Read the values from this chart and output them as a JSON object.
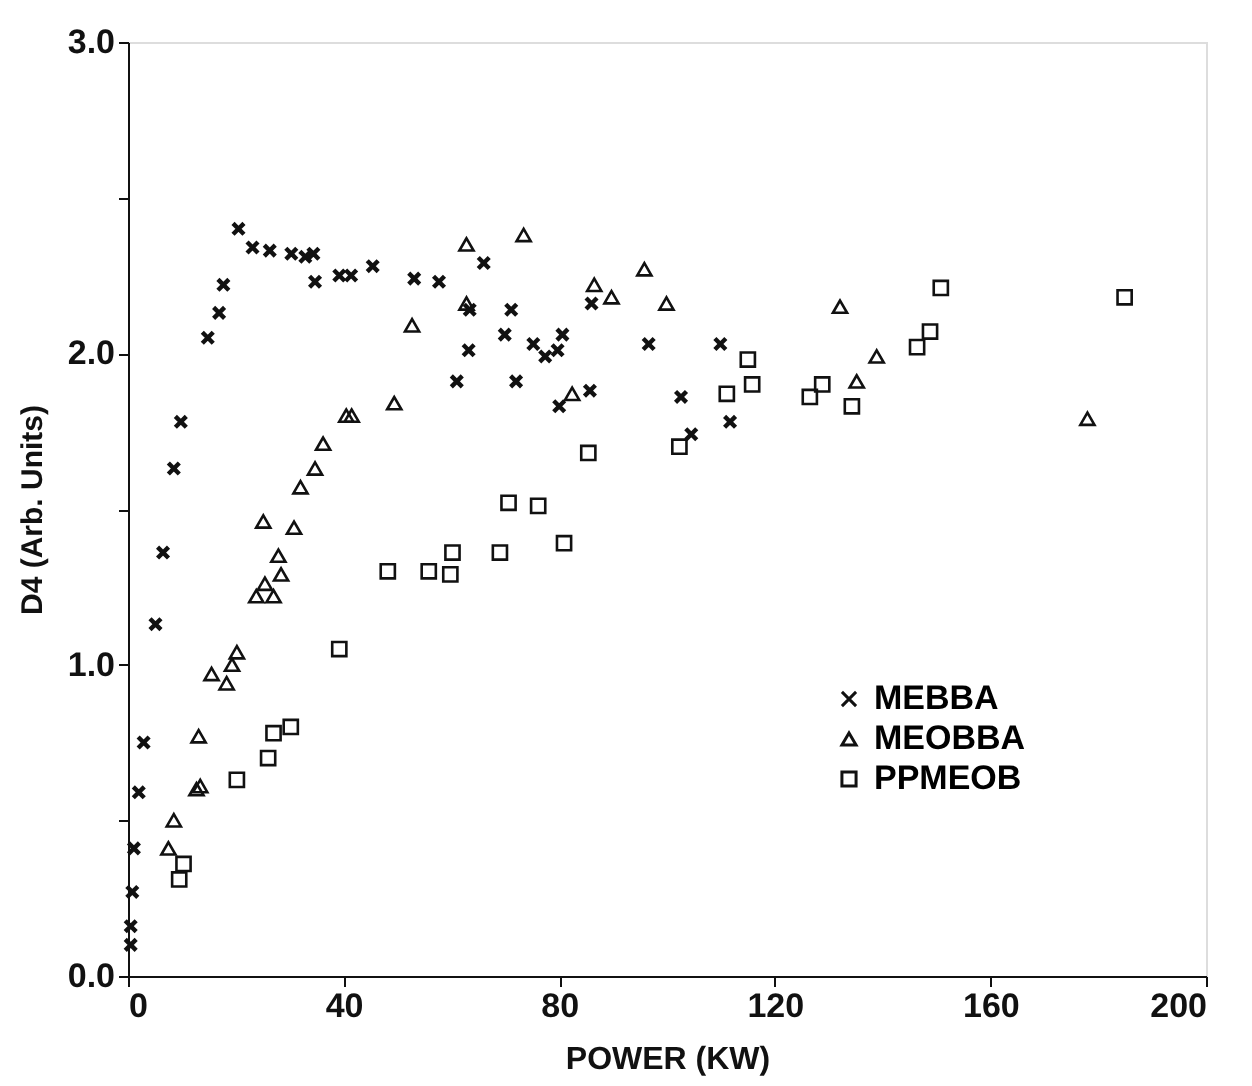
{
  "chart_data": {
    "type": "scatter",
    "xlabel": "POWER (KW)",
    "ylabel": "D4 (Arb. Units)",
    "xlim": [
      0,
      200
    ],
    "xticks": [
      0,
      40,
      80,
      120,
      160,
      200
    ],
    "ylim": [
      0,
      3.0
    ],
    "yticks": [
      {
        "value": 0,
        "label": "0.0"
      },
      {
        "value": 0.5,
        "label": null
      },
      {
        "value": 1,
        "label": "1.0"
      },
      {
        "value": 1.5,
        "label": null
      },
      {
        "value": 2,
        "label": "2.0"
      },
      {
        "value": 2.5,
        "label": null
      },
      {
        "value": 3,
        "label": "3.0"
      }
    ],
    "grid": false,
    "legend": "bottom right",
    "series": [
      {
        "name": "MEBBA",
        "color": "#111111",
        "marker": "cross",
        "x": [
          0.5,
          0.5,
          0.8,
          1.1,
          2,
          2.9,
          5.1,
          6.5,
          8.5,
          9.8,
          14.8,
          16.9,
          17.7,
          20.5,
          23.1,
          26.3,
          30.3,
          32.9,
          34.4,
          34.7,
          39.2,
          41.4,
          45.4,
          53.1,
          57.7,
          66,
          63.4,
          63.2,
          61,
          69.9,
          71.1,
          72,
          75.2,
          77.4,
          79.7,
          80.6,
          80,
          85.7,
          86,
          96.6,
          102.6,
          104.5,
          109.9,
          111.7
        ],
        "values": [
          0.1,
          0.16,
          0.27,
          0.41,
          0.59,
          0.75,
          1.13,
          1.36,
          1.63,
          1.78,
          2.05,
          2.13,
          2.22,
          2.4,
          2.34,
          2.33,
          2.32,
          2.31,
          2.32,
          2.23,
          2.25,
          2.25,
          2.28,
          2.24,
          2.23,
          2.29,
          2.14,
          2.01,
          1.91,
          2.06,
          2.14,
          1.91,
          2.03,
          1.99,
          2.01,
          2.06,
          1.83,
          1.88,
          2.16,
          2.03,
          1.86,
          1.74,
          2.03,
          1.78
        ]
      },
      {
        "name": "MEOBBA",
        "color": "#111111",
        "marker": "triangle",
        "x": [
          7.5,
          8.5,
          12.7,
          13.4,
          13.1,
          15.5,
          18.3,
          19.3,
          20.2,
          23.8,
          25.4,
          27,
          25.1,
          27.9,
          28.4,
          30.8,
          32,
          34.7,
          36.2,
          40.5,
          41.5,
          49.4,
          52.7,
          62.8,
          62.8,
          73.4,
          82.4,
          86.5,
          89.7,
          95.8,
          99.9,
          132.1,
          135.2,
          138.9,
          178
        ],
        "values": [
          0.41,
          0.5,
          0.6,
          0.61,
          0.77,
          0.97,
          0.94,
          1.0,
          1.04,
          1.22,
          1.26,
          1.22,
          1.46,
          1.35,
          1.29,
          1.44,
          1.57,
          1.63,
          1.71,
          1.8,
          1.8,
          1.84,
          2.09,
          2.35,
          2.16,
          2.38,
          1.87,
          2.22,
          2.18,
          2.27,
          2.16,
          2.15,
          1.91,
          1.99,
          1.79
        ]
      },
      {
        "name": "PPMEOB",
        "color": "#111111",
        "marker": "square",
        "x": [
          9.5,
          10.3,
          20.2,
          26,
          27,
          30.2,
          39.2,
          48.2,
          55.8,
          59.8,
          60.2,
          69,
          70.6,
          76.1,
          80.9,
          85.4,
          102.3,
          111.1,
          115,
          115.8,
          126.5,
          128.8,
          134.3,
          146.4,
          148.8,
          150.8,
          184.9
        ],
        "values": [
          0.31,
          0.36,
          0.63,
          0.7,
          0.78,
          0.8,
          1.05,
          1.3,
          1.3,
          1.29,
          1.36,
          1.36,
          1.52,
          1.51,
          1.39,
          1.68,
          1.7,
          1.87,
          1.98,
          1.9,
          1.86,
          1.9,
          1.83,
          2.02,
          2.07,
          2.21,
          2.18
        ]
      }
    ]
  }
}
